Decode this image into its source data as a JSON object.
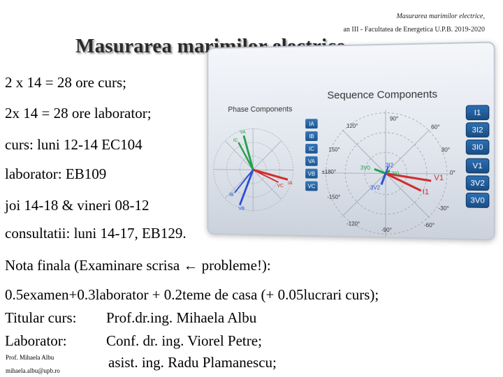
{
  "header": {
    "top_right": "Masurarea marimilor electrice,",
    "sub_right": "an III - Facultatea de Energetica U.P.B. 2019-2020",
    "title": "Masurarea marimilor electrice"
  },
  "content": {
    "line1": "2 x 14 = 28 ore curs;",
    "line2": "2x 14 = 28 ore laborator;",
    "line3": "curs: luni 12-14  EC104",
    "line4": "laborator: EB109",
    "line5": "joi 14-18 & vineri 08-12",
    "line6": "consultatii: luni 14-17, EB129.",
    "line7": "Nota finala (Examinare scrisa ← probleme!):",
    "line8": "0.5examen+0.3laborator + 0.2teme de casa (+ 0.05lucrari curs);",
    "titular_label": "Titular curs:",
    "titular_value": "Prof.dr.ing. Mihaela Albu",
    "laborator_label": "Laborator:",
    "laborator_value": "Conf. dr. ing. Viorel Petre;",
    "assistant_value": "asist. ing. Radu Plamanescu;"
  },
  "footer": {
    "author": "Prof. Mihaela Albu",
    "email": "mihaela.albu@upb.ro"
  },
  "image": {
    "phase_title": "Phase Components",
    "sequence_title": "Sequence Components",
    "phase_buttons": [
      "IA",
      "IB",
      "IC",
      "VA",
      "VB",
      "VC"
    ],
    "sequence_buttons": [
      "I1",
      "3I2",
      "3I0",
      "V1",
      "3V2",
      "3V0"
    ],
    "angle_labels": [
      "90°",
      "120°",
      "60°",
      "150°",
      "30°",
      "±180°",
      "0°",
      "-150°",
      "-30°",
      "-120°",
      "-60°",
      "-90°"
    ],
    "vector_labels": [
      "V1",
      "I1",
      "3V0",
      "3I2",
      "3I0",
      "3V2",
      "IA",
      "VA",
      "IB",
      "VB",
      "IC",
      "VC"
    ],
    "colors": {
      "red": "#d22a2a",
      "blue": "#2a4fd2",
      "green": "#22a04a",
      "button": "#1f5c9a"
    }
  }
}
